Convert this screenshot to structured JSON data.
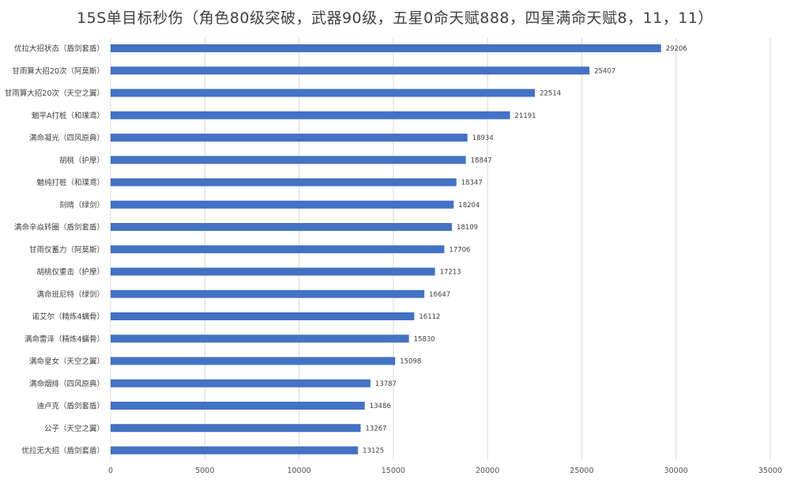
{
  "title": "15S单目标秒伤（角色80级突破，武器90级，五星0命天赋888，四星满命天赋8，11，11）",
  "chart_data": {
    "type": "bar",
    "orientation": "horizontal",
    "title": "15S单目标秒伤（角色80级突破，武器90级，五星0命天赋888，四星满命天赋8，11，11）",
    "categories": [
      "优拉大招状态（盾剑套盾）",
      "甘雨算大招20次（阿莫斯）",
      "甘雨算大招20次（天空之翼）",
      "魈平A打桩（和璞鸢）",
      "满命凝光（四风原典）",
      "胡桃（护摩）",
      "魈纯打桩（和璞鸢）",
      "刻晴（绿剑）",
      "满命辛焱转圈（盾剑套盾）",
      "甘雨仅蓄力（阿莫斯）",
      "胡桃仅重击（护摩）",
      "满命班尼特（绿剑）",
      "诺艾尔（精炼4螭骨）",
      "满命雷泽（精炼4螭骨）",
      "满命皇女（天空之翼）",
      "满命烟绯（四风原典）",
      "迪卢克（盾剑套盾）",
      "公子（天空之翼）",
      "优拉无大招（盾剑套盾）"
    ],
    "values": [
      29206,
      25407,
      22514,
      21191,
      18934,
      18847,
      18347,
      18204,
      18109,
      17706,
      17213,
      16647,
      16112,
      15830,
      15098,
      13787,
      13486,
      13267,
      13125
    ],
    "xlim": [
      0,
      35000
    ],
    "xticks": [
      0,
      5000,
      10000,
      15000,
      20000,
      25000,
      30000,
      35000
    ],
    "bar_color": "#4472c4",
    "grid": true,
    "legend": false
  }
}
